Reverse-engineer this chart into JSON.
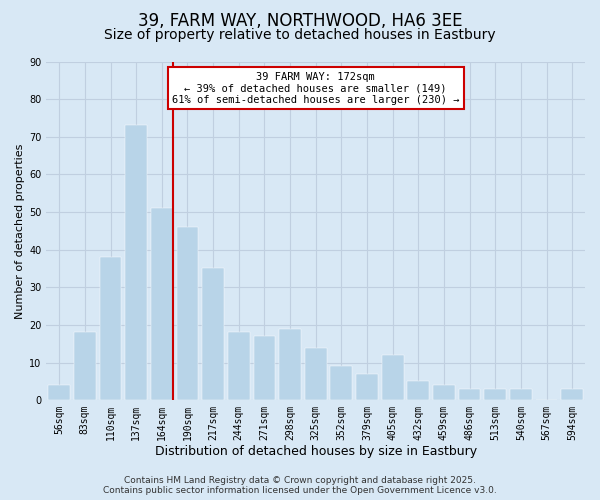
{
  "title": "39, FARM WAY, NORTHWOOD, HA6 3EE",
  "subtitle": "Size of property relative to detached houses in Eastbury",
  "xlabel": "Distribution of detached houses by size in Eastbury",
  "ylabel": "Number of detached properties",
  "categories": [
    "56sqm",
    "83sqm",
    "110sqm",
    "137sqm",
    "164sqm",
    "190sqm",
    "217sqm",
    "244sqm",
    "271sqm",
    "298sqm",
    "325sqm",
    "352sqm",
    "379sqm",
    "405sqm",
    "432sqm",
    "459sqm",
    "486sqm",
    "513sqm",
    "540sqm",
    "567sqm",
    "594sqm"
  ],
  "values": [
    4,
    18,
    38,
    73,
    51,
    46,
    35,
    18,
    17,
    19,
    14,
    9,
    7,
    12,
    5,
    4,
    3,
    3,
    3,
    0,
    3
  ],
  "bar_color": "#b8d4e8",
  "bar_edge_color": "#b8d4e8",
  "ylim": [
    0,
    90
  ],
  "yticks": [
    0,
    10,
    20,
    30,
    40,
    50,
    60,
    70,
    80,
    90
  ],
  "vline_index": 4,
  "vline_color": "#cc0000",
  "annotation_title": "39 FARM WAY: 172sqm",
  "annotation_line1": "← 39% of detached houses are smaller (149)",
  "annotation_line2": "61% of semi-detached houses are larger (230) →",
  "annotation_box_color": "#ffffff",
  "annotation_box_edge": "#cc0000",
  "grid_color": "#c0cfe0",
  "background_color": "#d8e8f5",
  "footer1": "Contains HM Land Registry data © Crown copyright and database right 2025.",
  "footer2": "Contains public sector information licensed under the Open Government Licence v3.0.",
  "title_fontsize": 12,
  "subtitle_fontsize": 10,
  "tick_fontsize": 7,
  "xlabel_fontsize": 9,
  "ylabel_fontsize": 8,
  "footer_fontsize": 6.5
}
